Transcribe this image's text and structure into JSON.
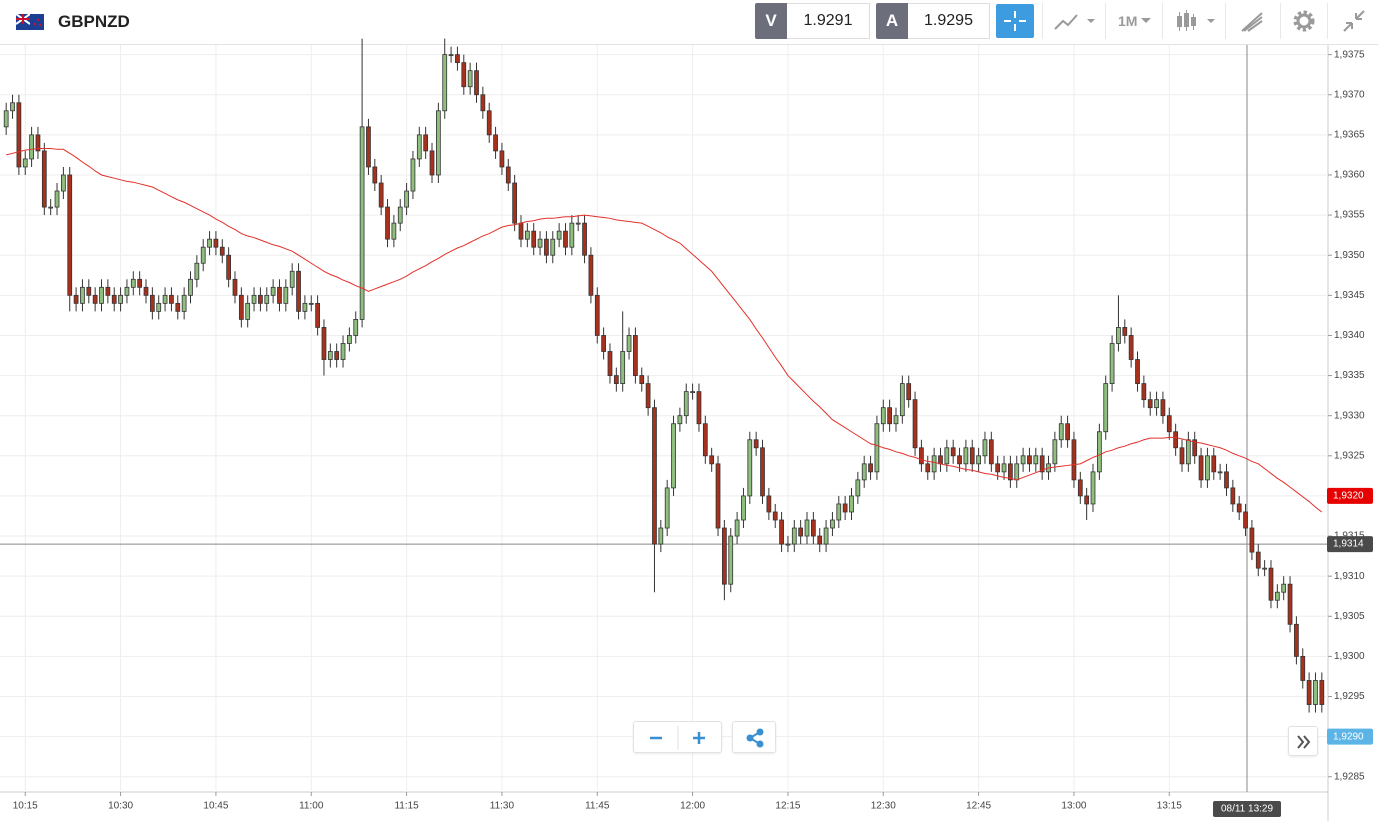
{
  "header": {
    "symbol": "GBPNZD",
    "sell_label": "V",
    "sell_price": 1.9291,
    "buy_label": "A",
    "buy_price": 1.9295,
    "timeframe": "1M"
  },
  "chart_data": {
    "type": "candlestick",
    "categories": [
      null,
      null,
      null,
      "10:15",
      null,
      null,
      null,
      null,
      null,
      null,
      null,
      null,
      null,
      null,
      null,
      null,
      null,
      null,
      "10:30",
      null,
      null,
      null,
      null,
      null,
      null,
      null,
      null,
      null,
      null,
      null,
      null,
      null,
      null,
      "10:45",
      null,
      null,
      null,
      null,
      null,
      null,
      null,
      null,
      null,
      null,
      null,
      null,
      null,
      null,
      "11:00",
      null,
      null,
      null,
      null,
      null,
      null,
      null,
      null,
      null,
      null,
      null,
      null,
      null,
      null,
      "11:15",
      null,
      null,
      null,
      null,
      null,
      null,
      null,
      null,
      null,
      null,
      null,
      null,
      null,
      null,
      "11:30",
      null,
      null,
      null,
      null,
      null,
      null,
      null,
      null,
      null,
      null,
      null,
      null,
      null,
      null,
      "11:45",
      null,
      null,
      null,
      null,
      null,
      null,
      null,
      null,
      null,
      null,
      null,
      null,
      null,
      null,
      "12:00",
      null,
      null,
      null,
      null,
      null,
      null,
      null,
      null,
      null,
      null,
      null,
      null,
      null,
      null,
      "12:15",
      null,
      null,
      null,
      null,
      null,
      null,
      null,
      null,
      null,
      null,
      null,
      null,
      null,
      null,
      "12:30",
      null,
      null,
      null,
      null,
      null,
      null,
      null,
      null,
      null,
      null,
      null,
      null,
      null,
      null,
      "12:45",
      null,
      null,
      null,
      null,
      null,
      null,
      null,
      null,
      null,
      null,
      null,
      null,
      null,
      null,
      "13:00",
      null,
      null,
      null,
      null,
      null,
      null,
      null,
      null,
      null,
      null,
      null,
      null,
      null,
      null,
      "13:15",
      null,
      null,
      null,
      null,
      null,
      null,
      null,
      null,
      null,
      null,
      null,
      null,
      null,
      null,
      null,
      null,
      null,
      null,
      null,
      null,
      null,
      null,
      null,
      null
    ],
    "open": [
      1.9366,
      1.9368,
      1.9369,
      1.9361,
      1.9362,
      1.9365,
      1.9363,
      1.9356,
      1.9356,
      1.9358,
      1.936,
      1.9345,
      1.9344,
      1.9346,
      1.9345,
      1.9344,
      1.9346,
      1.9345,
      1.9344,
      1.9345,
      1.9346,
      1.9347,
      1.9346,
      1.9345,
      1.9343,
      1.9344,
      1.9345,
      1.9344,
      1.9343,
      1.9345,
      1.9347,
      1.9349,
      1.9351,
      1.9352,
      1.9351,
      1.935,
      1.9347,
      1.9345,
      1.9342,
      1.9344,
      1.9345,
      1.9344,
      1.9345,
      1.9346,
      1.9344,
      1.9346,
      1.9348,
      1.9343,
      1.9344,
      1.9344,
      1.9341,
      1.9337,
      1.9338,
      1.9337,
      1.9339,
      1.934,
      1.9342,
      1.9366,
      1.9361,
      1.9359,
      1.9356,
      1.9352,
      1.9354,
      1.9356,
      1.9358,
      1.9362,
      1.9365,
      1.9363,
      1.936,
      1.9368,
      1.9375,
      1.9375,
      1.9374,
      1.9371,
      1.9373,
      1.937,
      1.9368,
      1.9365,
      1.9363,
      1.9361,
      1.9359,
      1.9354,
      1.9352,
      1.9353,
      1.9351,
      1.9352,
      1.935,
      1.9352,
      1.9353,
      1.9351,
      1.9354,
      1.9354,
      1.935,
      1.9345,
      1.934,
      1.9338,
      1.9335,
      1.9334,
      1.9338,
      1.934,
      1.9335,
      1.9334,
      1.9331,
      1.9314,
      1.9316,
      1.9321,
      1.9329,
      1.933,
      1.9333,
      1.9333,
      1.9329,
      1.9325,
      1.9324,
      1.9316,
      1.9309,
      1.9315,
      1.9317,
      1.932,
      1.9327,
      1.9326,
      1.932,
      1.9318,
      1.9317,
      1.9314,
      1.9314,
      1.9316,
      1.9315,
      1.9317,
      1.9315,
      1.9314,
      1.9316,
      1.9317,
      1.9319,
      1.9318,
      1.932,
      1.9322,
      1.9324,
      1.9323,
      1.9329,
      1.9331,
      1.9329,
      1.933,
      1.9334,
      1.9332,
      1.9326,
      1.9324,
      1.9323,
      1.9325,
      1.9324,
      1.9326,
      1.9325,
      1.9324,
      1.9326,
      1.9324,
      1.9325,
      1.9327,
      1.9324,
      1.9323,
      1.9324,
      1.9322,
      1.9324,
      1.9325,
      1.9324,
      1.9325,
      1.9323,
      1.9324,
      1.9327,
      1.9329,
      1.9327,
      1.9322,
      1.932,
      1.9319,
      1.9323,
      1.9328,
      1.9334,
      1.9339,
      1.9341,
      1.934,
      1.9337,
      1.9334,
      1.9332,
      1.9331,
      1.9332,
      1.933,
      1.9328,
      1.9326,
      1.9324,
      1.9327,
      1.9325,
      1.9322,
      1.9325,
      1.9323,
      1.9323,
      1.9321,
      1.9319,
      1.9318,
      1.9316,
      1.9313,
      1.9311,
      1.9311,
      1.9307,
      1.9308,
      1.9309,
      1.9304,
      1.93,
      1.9297,
      1.9294,
      1.9297
    ],
    "high": [
      1.9369,
      1.937,
      1.937,
      1.9363,
      1.9366,
      1.9366,
      1.9364,
      1.9357,
      1.9359,
      1.9361,
      1.9361,
      1.9346,
      1.9347,
      1.9347,
      1.9346,
      1.9347,
      1.9347,
      1.9346,
      1.9346,
      1.9347,
      1.9348,
      1.9348,
      1.9347,
      1.9346,
      1.9345,
      1.9346,
      1.9346,
      1.9345,
      1.9346,
      1.9348,
      1.935,
      1.9352,
      1.9353,
      1.9353,
      1.9352,
      1.9351,
      1.9348,
      1.9346,
      1.9345,
      1.9346,
      1.9346,
      1.9346,
      1.9347,
      1.9347,
      1.9347,
      1.9349,
      1.9349,
      1.9345,
      1.9345,
      1.9345,
      1.9342,
      1.9339,
      1.9339,
      1.934,
      1.9341,
      1.9343,
      1.9377,
      1.9367,
      1.9362,
      1.936,
      1.9357,
      1.9355,
      1.9357,
      1.9359,
      1.9363,
      1.9366,
      1.9366,
      1.9364,
      1.9369,
      1.9377,
      1.9376,
      1.9376,
      1.9375,
      1.9374,
      1.9374,
      1.9371,
      1.9369,
      1.9366,
      1.9364,
      1.9362,
      1.936,
      1.9355,
      1.9354,
      1.9354,
      1.9353,
      1.9353,
      1.9353,
      1.9354,
      1.9354,
      1.9355,
      1.9355,
      1.9355,
      1.9351,
      1.9346,
      1.9341,
      1.9339,
      1.9336,
      1.9343,
      1.9341,
      1.9341,
      1.9336,
      1.9335,
      1.9332,
      1.9317,
      1.9322,
      1.933,
      1.9331,
      1.9334,
      1.9334,
      1.9334,
      1.933,
      1.9326,
      1.9325,
      1.9317,
      1.9316,
      1.9318,
      1.9321,
      1.9328,
      1.9328,
      1.9327,
      1.9321,
      1.9319,
      1.9318,
      1.9315,
      1.9317,
      1.9317,
      1.9318,
      1.9318,
      1.9316,
      1.9317,
      1.9318,
      1.932,
      1.932,
      1.9321,
      1.9323,
      1.9325,
      1.9325,
      1.933,
      1.9332,
      1.9332,
      1.9331,
      1.9335,
      1.9335,
      1.9333,
      1.9327,
      1.9325,
      1.9326,
      1.9326,
      1.9327,
      1.9327,
      1.9326,
      1.9327,
      1.9327,
      1.9326,
      1.9328,
      1.9328,
      1.9325,
      1.9325,
      1.9325,
      1.9325,
      1.9326,
      1.9326,
      1.9326,
      1.9326,
      1.9325,
      1.9328,
      1.933,
      1.933,
      1.9328,
      1.9323,
      1.9321,
      1.9324,
      1.9329,
      1.9335,
      1.934,
      1.9345,
      1.9342,
      1.9341,
      1.9338,
      1.9335,
      1.9333,
      1.9333,
      1.9333,
      1.9331,
      1.9329,
      1.9327,
      1.9328,
      1.9328,
      1.9326,
      1.9326,
      1.9326,
      1.9324,
      1.9324,
      1.9322,
      1.932,
      1.9319,
      1.9317,
      1.9314,
      1.9312,
      1.9312,
      1.9309,
      1.931,
      1.931,
      1.9305,
      1.9301,
      1.9298,
      1.9298,
      1.9298
    ],
    "low": [
      1.9365,
      1.9367,
      1.936,
      1.936,
      1.9361,
      1.9362,
      1.9355,
      1.9355,
      1.9355,
      1.9357,
      1.9343,
      1.9343,
      1.9343,
      1.9344,
      1.9343,
      1.9343,
      1.9344,
      1.9343,
      1.9343,
      1.9344,
      1.9345,
      1.9345,
      1.9344,
      1.9342,
      1.9342,
      1.9343,
      1.9343,
      1.9342,
      1.9342,
      1.9344,
      1.9346,
      1.9348,
      1.935,
      1.935,
      1.9349,
      1.9346,
      1.9344,
      1.9341,
      1.9341,
      1.9343,
      1.9343,
      1.9343,
      1.9344,
      1.9343,
      1.9343,
      1.9345,
      1.9342,
      1.9342,
      1.9343,
      1.934,
      1.9335,
      1.9336,
      1.9336,
      1.9336,
      1.9338,
      1.9339,
      1.9341,
      1.936,
      1.9358,
      1.9355,
      1.9351,
      1.9351,
      1.9353,
      1.9355,
      1.9357,
      1.9361,
      1.9362,
      1.9359,
      1.9359,
      1.9367,
      1.9374,
      1.9373,
      1.937,
      1.937,
      1.9369,
      1.9367,
      1.9364,
      1.9362,
      1.936,
      1.9358,
      1.9353,
      1.9351,
      1.9351,
      1.935,
      1.935,
      1.9349,
      1.9349,
      1.9351,
      1.935,
      1.935,
      1.9353,
      1.9349,
      1.9344,
      1.9339,
      1.9337,
      1.9334,
      1.9333,
      1.9333,
      1.9337,
      1.9334,
      1.9333,
      1.933,
      1.9308,
      1.9313,
      1.9315,
      1.932,
      1.9328,
      1.9329,
      1.9332,
      1.9328,
      1.9324,
      1.9323,
      1.9315,
      1.9307,
      1.9308,
      1.9314,
      1.9316,
      1.9319,
      1.9325,
      1.9319,
      1.9317,
      1.9316,
      1.9313,
      1.9313,
      1.9313,
      1.9314,
      1.9314,
      1.9314,
      1.9313,
      1.9313,
      1.9315,
      1.9316,
      1.9317,
      1.9317,
      1.9319,
      1.9321,
      1.9322,
      1.9322,
      1.9328,
      1.9328,
      1.9328,
      1.9329,
      1.9331,
      1.9325,
      1.9323,
      1.9322,
      1.9322,
      1.9323,
      1.9323,
      1.9324,
      1.9323,
      1.9323,
      1.9323,
      1.9323,
      1.9324,
      1.9323,
      1.9322,
      1.9322,
      1.9321,
      1.9321,
      1.9323,
      1.9323,
      1.9323,
      1.9322,
      1.9322,
      1.9323,
      1.9326,
      1.9326,
      1.9321,
      1.9319,
      1.9317,
      1.9318,
      1.9322,
      1.9327,
      1.9333,
      1.9338,
      1.9339,
      1.9336,
      1.9333,
      1.9331,
      1.933,
      1.933,
      1.9329,
      1.9327,
      1.9325,
      1.9323,
      1.9323,
      1.9324,
      1.9321,
      1.9321,
      1.9322,
      1.9322,
      1.932,
      1.9318,
      1.9317,
      1.9315,
      1.9312,
      1.931,
      1.931,
      1.9306,
      1.9306,
      1.9307,
      1.9303,
      1.9299,
      1.9296,
      1.9293,
      1.9293,
      1.9293
    ],
    "close": [
      1.9368,
      1.9369,
      1.9361,
      1.9362,
      1.9365,
      1.9363,
      1.9356,
      1.9356,
      1.9358,
      1.936,
      1.9345,
      1.9344,
      1.9346,
      1.9345,
      1.9344,
      1.9346,
      1.9345,
      1.9344,
      1.9345,
      1.9346,
      1.9347,
      1.9346,
      1.9345,
      1.9343,
      1.9344,
      1.9345,
      1.9344,
      1.9343,
      1.9345,
      1.9347,
      1.9349,
      1.9351,
      1.9352,
      1.9351,
      1.935,
      1.9347,
      1.9345,
      1.9342,
      1.9344,
      1.9345,
      1.9344,
      1.9345,
      1.9346,
      1.9344,
      1.9346,
      1.9348,
      1.9343,
      1.9344,
      1.9344,
      1.9341,
      1.9337,
      1.9338,
      1.9337,
      1.9339,
      1.934,
      1.9342,
      1.9366,
      1.9361,
      1.9359,
      1.9356,
      1.9352,
      1.9354,
      1.9356,
      1.9358,
      1.9362,
      1.9365,
      1.9363,
      1.936,
      1.9368,
      1.9375,
      1.9375,
      1.9374,
      1.9371,
      1.9373,
      1.937,
      1.9368,
      1.9365,
      1.9363,
      1.9361,
      1.9359,
      1.9354,
      1.9352,
      1.9353,
      1.9351,
      1.9352,
      1.935,
      1.9352,
      1.9353,
      1.9351,
      1.9354,
      1.9354,
      1.935,
      1.9345,
      1.934,
      1.9338,
      1.9335,
      1.9334,
      1.9338,
      1.934,
      1.9335,
      1.9334,
      1.9331,
      1.9314,
      1.9316,
      1.9321,
      1.9329,
      1.933,
      1.9333,
      1.9333,
      1.9329,
      1.9325,
      1.9324,
      1.9316,
      1.9309,
      1.9315,
      1.9317,
      1.932,
      1.9327,
      1.9326,
      1.932,
      1.9318,
      1.9317,
      1.9314,
      1.9314,
      1.9316,
      1.9315,
      1.9317,
      1.9315,
      1.9314,
      1.9316,
      1.9317,
      1.9319,
      1.9318,
      1.932,
      1.9322,
      1.9324,
      1.9323,
      1.9329,
      1.9331,
      1.9329,
      1.933,
      1.9334,
      1.9332,
      1.9326,
      1.9324,
      1.9323,
      1.9325,
      1.9324,
      1.9326,
      1.9325,
      1.9324,
      1.9326,
      1.9324,
      1.9325,
      1.9327,
      1.9324,
      1.9323,
      1.9324,
      1.9322,
      1.9324,
      1.9325,
      1.9324,
      1.9325,
      1.9323,
      1.9324,
      1.9327,
      1.9329,
      1.9327,
      1.9322,
      1.932,
      1.9319,
      1.9323,
      1.9328,
      1.9334,
      1.9339,
      1.9341,
      1.934,
      1.9337,
      1.9334,
      1.9332,
      1.9331,
      1.9332,
      1.933,
      1.9328,
      1.9326,
      1.9324,
      1.9327,
      1.9325,
      1.9322,
      1.9325,
      1.9323,
      1.9323,
      1.9321,
      1.9319,
      1.9318,
      1.9316,
      1.9313,
      1.9311,
      1.9311,
      1.9307,
      1.9308,
      1.9309,
      1.9304,
      1.93,
      1.9297,
      1.9294,
      1.9297,
      1.9294
    ],
    "up_color": "#8fbf7f",
    "down_color": "#a8311e",
    "wick_color": "#333333",
    "moving_average": {
      "color": "#e3302a",
      "values": [
        1.93625,
        1.93627,
        1.93629,
        1.93631,
        1.93632,
        1.93633,
        1.93633,
        1.93633,
        1.93632,
        1.93632,
        1.93627,
        1.93622,
        1.93616,
        1.93611,
        1.93605,
        1.936,
        1.93598,
        1.93596,
        1.93594,
        1.93592,
        1.93591,
        1.93589,
        1.93587,
        1.93585,
        1.93581,
        1.93577,
        1.93573,
        1.93569,
        1.93566,
        1.93562,
        1.93558,
        1.93554,
        1.9355,
        1.93545,
        1.93541,
        1.93536,
        1.93532,
        1.93527,
        1.93524,
        1.93522,
        1.93519,
        1.93516,
        1.93513,
        1.93511,
        1.93508,
        1.93505,
        1.935,
        1.93495,
        1.9349,
        1.93485,
        1.9348,
        1.93476,
        1.93473,
        1.93469,
        1.93466,
        1.93462,
        1.93459,
        1.93455,
        1.93458,
        1.93461,
        1.93464,
        1.93467,
        1.9347,
        1.93474,
        1.93479,
        1.93483,
        1.93487,
        1.93492,
        1.93496,
        1.93501,
        1.93505,
        1.93509,
        1.93512,
        1.93516,
        1.9352,
        1.93524,
        1.93527,
        1.93531,
        1.93535,
        1.93537,
        1.93538,
        1.9354,
        1.93542,
        1.93543,
        1.93545,
        1.93546,
        1.93546,
        1.93547,
        1.93548,
        1.93548,
        1.93549,
        1.9355,
        1.93549,
        1.93548,
        1.93547,
        1.93546,
        1.93544,
        1.93543,
        1.93542,
        1.93541,
        1.9354,
        1.93536,
        1.93532,
        1.93528,
        1.93523,
        1.93519,
        1.93515,
        1.93508,
        1.93501,
        1.93494,
        1.93487,
        1.9348,
        1.9347,
        1.9346,
        1.9345,
        1.9344,
        1.9343,
        1.9342,
        1.93408,
        1.93397,
        1.93385,
        1.93373,
        1.93362,
        1.9335,
        1.93342,
        1.93334,
        1.93326,
        1.93318,
        1.93311,
        1.93303,
        1.93295,
        1.9329,
        1.93285,
        1.9328,
        1.93275,
        1.9327,
        1.93265,
        1.93263,
        1.9326,
        1.93258,
        1.93255,
        1.93253,
        1.9325,
        1.93248,
        1.93245,
        1.93243,
        1.93242,
        1.9324,
        1.93238,
        1.93237,
        1.93235,
        1.93233,
        1.93232,
        1.9323,
        1.93228,
        1.93227,
        1.93225,
        1.93223,
        1.93222,
        1.9322,
        1.93223,
        1.93226,
        1.93229,
        1.93232,
        1.93235,
        1.93236,
        1.93237,
        1.93238,
        1.93239,
        1.9324,
        1.93244,
        1.93248,
        1.93251,
        1.93255,
        1.93257,
        1.9326,
        1.93262,
        1.93265,
        1.93267,
        1.9327,
        1.93272,
        1.93272,
        1.93272,
        1.93273,
        1.93273,
        1.93271,
        1.93269,
        1.93267,
        1.93266,
        1.93264,
        1.93262,
        1.9326,
        1.93257,
        1.93253,
        1.9325,
        1.93247,
        1.93243,
        1.9324,
        1.93234,
        1.93228,
        1.93222,
        1.93217,
        1.93211,
        1.93205,
        1.93199,
        1.93193,
        1.93186,
        1.9318
      ]
    },
    "ylim": [
      1.92831,
      1.93762
    ],
    "yticks": [
      {
        "value": 1.9285,
        "label": "1,9285"
      },
      {
        "value": 1.929,
        "label": "1,9290"
      },
      {
        "value": 1.9295,
        "label": "1,9295"
      },
      {
        "value": 1.93,
        "label": "1,9300"
      },
      {
        "value": 1.9305,
        "label": "1,9305"
      },
      {
        "value": 1.931,
        "label": "1,9310"
      },
      {
        "value": 1.9315,
        "label": "1,9315"
      },
      {
        "value": 1.932,
        "label": "1,9320"
      },
      {
        "value": 1.9325,
        "label": "1,9325"
      },
      {
        "value": 1.933,
        "label": "1,9330"
      },
      {
        "value": 1.9335,
        "label": "1,9335"
      },
      {
        "value": 1.934,
        "label": "1,9340"
      },
      {
        "value": 1.9345,
        "label": "1,9345"
      },
      {
        "value": 1.935,
        "label": "1,9350"
      },
      {
        "value": 1.9355,
        "label": "1,9355"
      },
      {
        "value": 1.936,
        "label": "1,9360"
      },
      {
        "value": 1.9365,
        "label": "1,9365"
      },
      {
        "value": 1.937,
        "label": "1,9370"
      },
      {
        "value": 1.9375,
        "label": "1,9375"
      }
    ],
    "grid": true,
    "ma_tag": {
      "value": 1.932,
      "label": "1,9320",
      "color": "#e60000"
    },
    "crosshair_tag": {
      "value": 1.9314,
      "label": "1,9314",
      "color": "#4a4a4a"
    },
    "price_tag": {
      "value": 1.929,
      "label": "1,9290",
      "color": "#5bb4e5"
    },
    "crosshair_time": "08/11 13:29"
  }
}
